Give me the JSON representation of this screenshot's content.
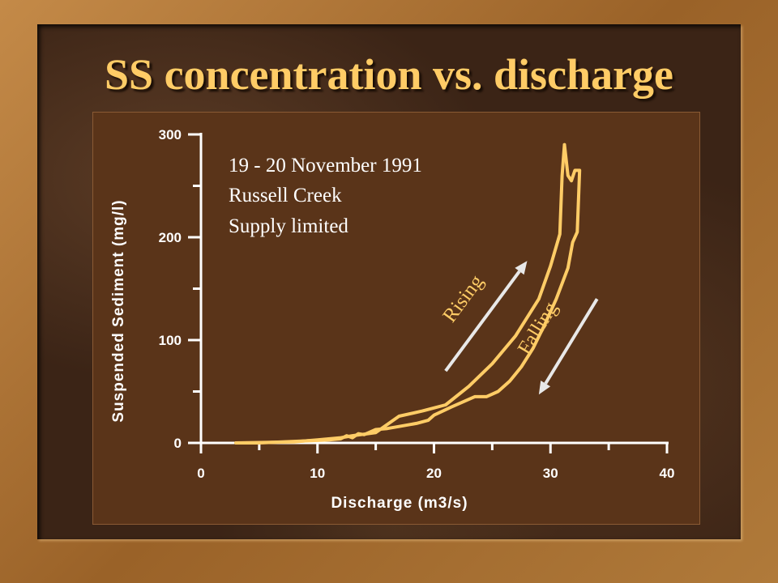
{
  "title": "SS concentration vs. discharge",
  "colors": {
    "background": "#b07a3a",
    "panel": "#5a3419",
    "title": "#ffcc66",
    "series": "#ffcc66",
    "axis": "#ffffff",
    "arrow": "#e8e8e8"
  },
  "chart_data": {
    "type": "line",
    "xlabel": "Discharge (m3/s)",
    "ylabel": "Suspended Sediment (mg/l)",
    "xlim": [
      0,
      40
    ],
    "ylim": [
      0,
      300
    ],
    "x_ticks": [
      "0",
      "10",
      "20",
      "30",
      "40"
    ],
    "y_ticks": [
      "0",
      "100",
      "200",
      "300"
    ],
    "grid": false,
    "annotations": [
      "19 - 20 November 1991",
      "Russell Creek",
      "Supply limited"
    ],
    "arrows": [
      {
        "label": "Rising",
        "from": [
          21,
          70
        ],
        "to": [
          28,
          177
        ]
      },
      {
        "label": "Falling",
        "from": [
          34,
          140
        ],
        "to": [
          29,
          47
        ]
      }
    ],
    "series": [
      {
        "segment": "Rising",
        "x": [
          3,
          8,
          10,
          12,
          13,
          15,
          17,
          19,
          21,
          23,
          25,
          27,
          29,
          30,
          30.8,
          31,
          31.2
        ],
        "y": [
          0,
          1,
          3,
          5,
          7,
          10,
          26,
          31,
          37,
          55,
          77,
          104,
          140,
          172,
          203,
          260,
          290
        ]
      },
      {
        "segment": "Falling",
        "x": [
          31.2,
          31.5,
          31.8,
          32.1,
          32.5,
          32.3,
          31.9,
          31.5,
          30.5,
          29.5,
          28.5,
          27.5,
          26.5,
          25.5,
          24.5,
          23.5,
          21.5,
          20,
          19.5,
          18.5,
          17,
          16,
          15,
          14,
          13.5,
          13,
          12.5,
          12,
          11,
          9,
          7,
          5,
          3
        ],
        "y": [
          290,
          260,
          255,
          265,
          265,
          205,
          195,
          170,
          140,
          115,
          92,
          74,
          60,
          50,
          45,
          45,
          35,
          27,
          22,
          19,
          16,
          14,
          13,
          8,
          9,
          5,
          7,
          4,
          3,
          2,
          1,
          0,
          0
        ]
      }
    ]
  }
}
